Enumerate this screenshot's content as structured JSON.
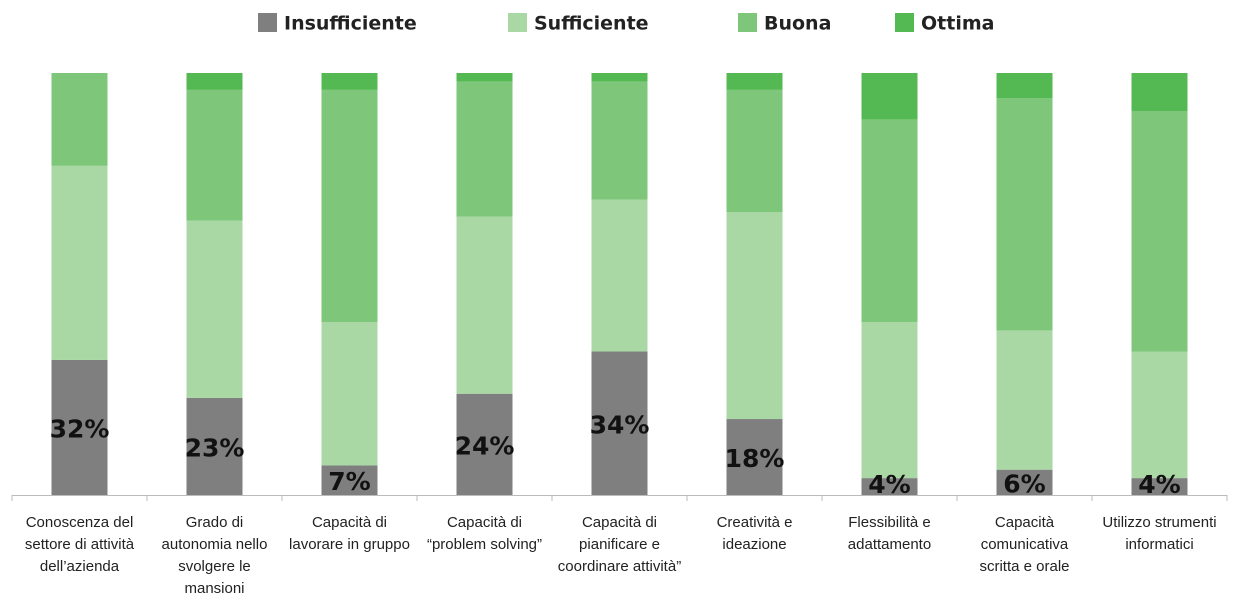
{
  "chart_data": {
    "type": "stacked_bar",
    "categories": [
      "Conoscenza del settore di attività dell’azienda",
      "Grado di autonomia nello svolgere le mansioni",
      "Capacità di lavorare in gruppo",
      "Capacità di “problem solving”",
      "Capacità di pianificare e coordinare attività”",
      "Creatività e ideazione",
      "Flessibilità e adattamento",
      "Capacità comunicativa scritta e orale",
      "Utilizzo strumenti informatici"
    ],
    "series": [
      {
        "name": "Insufficiente",
        "color": "#7f7f7f",
        "values": [
          32,
          23,
          7,
          24,
          34,
          18,
          4,
          6,
          4
        ],
        "value_labels": [
          "32%",
          "23%",
          "7%",
          "24%",
          "34%",
          "18%",
          "4%",
          "6%",
          "4%"
        ]
      },
      {
        "name": "Sufficiente",
        "color": "#a9d8a4",
        "values": [
          46,
          42,
          34,
          42,
          36,
          49,
          37,
          33,
          30
        ]
      },
      {
        "name": "Buona",
        "color": "#7dc67a",
        "values": [
          22,
          31,
          55,
          32,
          28,
          29,
          48,
          55,
          57
        ]
      },
      {
        "name": "Ottima",
        "color": "#54b952",
        "values": [
          0,
          4,
          4,
          2,
          2,
          4,
          11,
          6,
          9
        ]
      }
    ],
    "ylim": [
      0,
      100
    ]
  }
}
